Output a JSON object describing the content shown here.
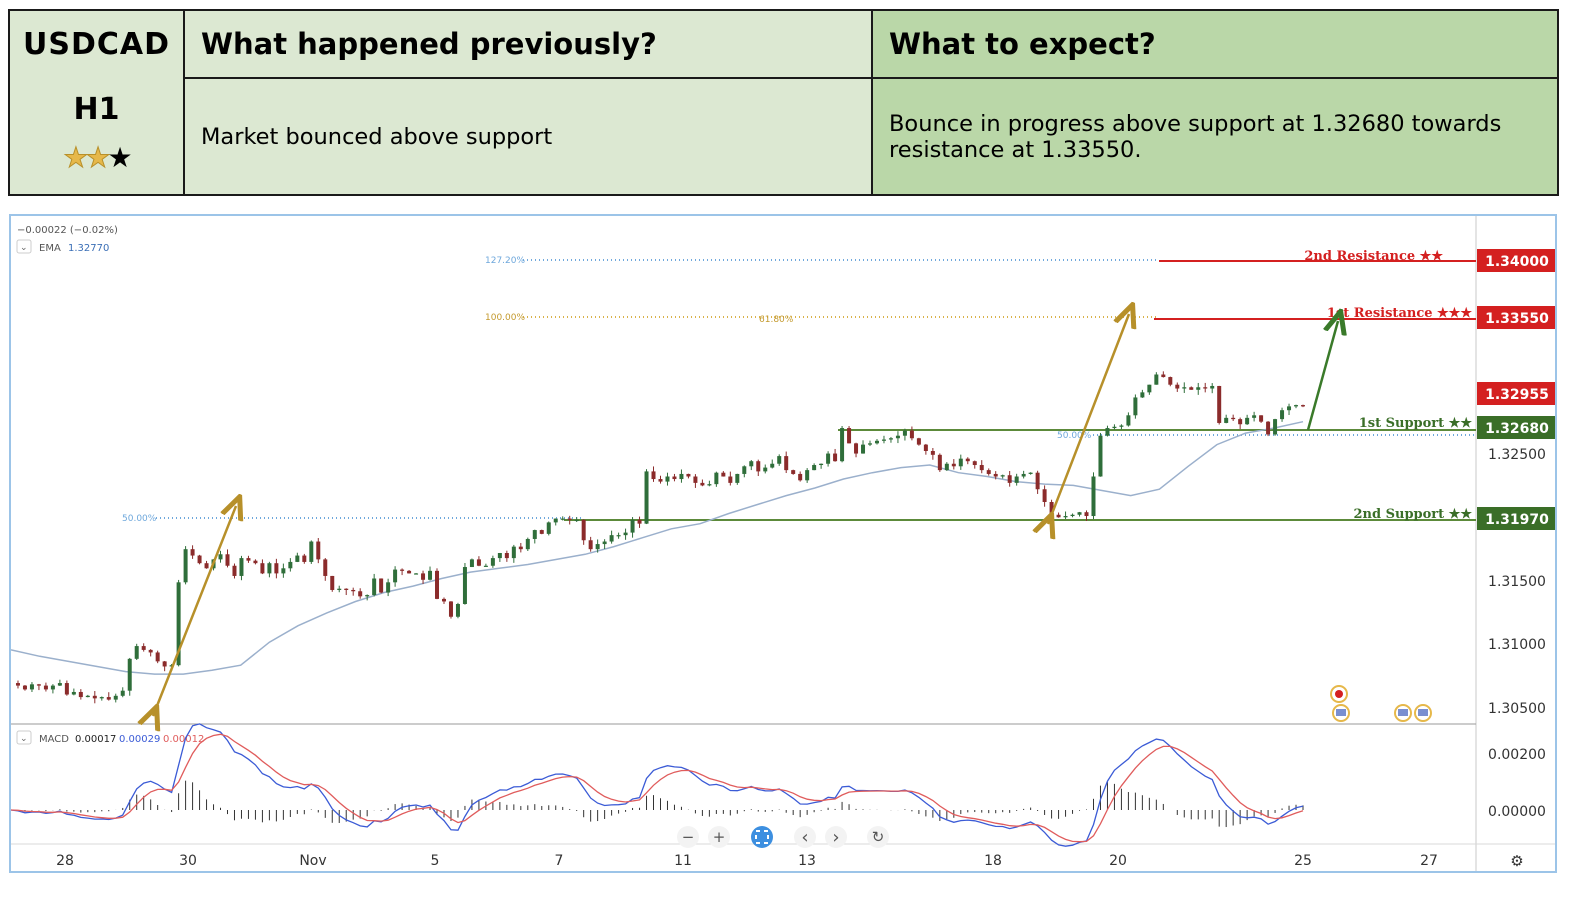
{
  "header": {
    "symbol": "USDCAD",
    "timeframe": "H1",
    "rating": {
      "filled": 2,
      "total": 3
    },
    "prev_title": "What happened previously?",
    "prev_text": "Market bounced above support",
    "expect_title": "What to expect?",
    "expect_line1": "Bounce in progress above support at 1.32680 towards",
    "expect_line2": "resistance at 1.33550."
  },
  "chart_top": {
    "change": "−0.00022 (−0.02%)",
    "ema_label": "EMA",
    "ema_value": "1.32770",
    "macd_label": "MACD",
    "macd_v1": "0.00017",
    "macd_v2": "0.00029",
    "macd_v3": "0.00012"
  },
  "chart_data": {
    "type": "line",
    "title": "",
    "ylim": [
      1.3025,
      1.3425
    ],
    "y_ticks": [
      "1.32500",
      "1.31500",
      "1.31000",
      "1.30500"
    ],
    "x_ticks": [
      "28",
      "30",
      "Nov",
      "5",
      "7",
      "11",
      "13",
      "18",
      "20",
      "25",
      "27"
    ],
    "price": [
      1.3068,
      1.3066,
      1.3063,
      1.3067,
      1.3066,
      1.3063,
      1.3066,
      1.3068,
      1.3059,
      1.3061,
      1.3057,
      1.3058,
      1.3056,
      1.3057,
      1.3055,
      1.3058,
      1.3062,
      1.3087,
      1.3097,
      1.3094,
      1.3092,
      1.3085,
      1.3081,
      1.3082,
      1.3147,
      1.3173,
      1.3168,
      1.3162,
      1.3158,
      1.3165,
      1.3169,
      1.316,
      1.3152,
      1.3166,
      1.3164,
      1.3162,
      1.3154,
      1.3162,
      1.3154,
      1.3158,
      1.3163,
      1.3168,
      1.3163,
      1.3179,
      1.3165,
      1.3152,
      1.3141,
      1.3142,
      1.3141,
      1.314,
      1.3136,
      1.3137,
      1.315,
      1.3139,
      1.3147,
      1.3157,
      1.3156,
      1.3154,
      1.3154,
      1.3149,
      1.3156,
      1.3134,
      1.3132,
      1.312,
      1.313,
      1.3159,
      1.3165,
      1.316,
      1.316,
      1.3166,
      1.317,
      1.3166,
      1.3175,
      1.3173,
      1.3181,
      1.3188,
      1.3185,
      1.3194,
      1.3197,
      1.3197,
      1.3196,
      1.3196,
      1.318,
      1.3173,
      1.3177,
      1.3179,
      1.3184,
      1.3184,
      1.3186,
      1.3196,
      1.3193,
      1.3234,
      1.3228,
      1.3226,
      1.323,
      1.3228,
      1.3232,
      1.323,
      1.3225,
      1.3223,
      1.3224,
      1.3233,
      1.323,
      1.3225,
      1.3232,
      1.3238,
      1.3242,
      1.3234,
      1.3237,
      1.324,
      1.3246,
      1.3235,
      1.3232,
      1.3227,
      1.3235,
      1.3239,
      1.324,
      1.3248,
      1.3242,
      1.3268,
      1.3256,
      1.3248,
      1.3255,
      1.3256,
      1.3258,
      1.3259,
      1.326,
      1.3262,
      1.3266,
      1.326,
      1.3255,
      1.325,
      1.3247,
      1.3235,
      1.324,
      1.3238,
      1.3244,
      1.3242,
      1.3239,
      1.3235,
      1.3232,
      1.323,
      1.3231,
      1.3225,
      1.323,
      1.3232,
      1.3233,
      1.322,
      1.321,
      1.32,
      1.3198,
      1.3199,
      1.32,
      1.3202,
      1.3199,
      1.323,
      1.3262,
      1.3268,
      1.3269,
      1.327,
      1.3278,
      1.3292,
      1.3296,
      1.3302,
      1.331,
      1.3308,
      1.3302,
      1.3299,
      1.33,
      1.3298,
      1.33,
      1.3299,
      1.3301,
      1.3272,
      1.3276,
      1.3275,
      1.3271,
      1.3276,
      1.3278,
      1.3273,
      1.3263,
      1.3275,
      1.3282,
      1.3285,
      1.3286,
      1.3285
    ],
    "ema": [
      1.3094,
      1.3089,
      1.3085,
      1.3081,
      1.3077,
      1.3075,
      1.3075,
      1.3078,
      1.3082,
      1.31,
      1.3113,
      1.3123,
      1.3132,
      1.3139,
      1.3144,
      1.315,
      1.3155,
      1.3158,
      1.3161,
      1.3165,
      1.3169,
      1.3175,
      1.3182,
      1.3189,
      1.3193,
      1.3201,
      1.3208,
      1.3215,
      1.3221,
      1.3228,
      1.3233,
      1.3237,
      1.3239,
      1.3233,
      1.323,
      1.3226,
      1.3224,
      1.3223,
      1.3219,
      1.3215,
      1.322,
      1.3238,
      1.3255,
      1.3264,
      1.3268,
      1.3273
    ],
    "levels": [
      {
        "name": "2nd Resistance ★★",
        "value": "1.34000",
        "color": "#d42020"
      },
      {
        "name": "1st Resistance ★★★",
        "value": "1.33550",
        "color": "#d42020"
      },
      {
        "name": "",
        "value": "1.32955",
        "color": "#d42020"
      },
      {
        "name": "1st Support ★★",
        "value": "1.32680",
        "color": "#3a6e28"
      },
      {
        "name": "2nd Support ★★",
        "value": "1.31970",
        "color": "#3a6e28"
      }
    ],
    "fib_labels": {
      "f1272": "127.20%",
      "f100": "100.00%",
      "f618": "61.80%",
      "f50a": "50.00%",
      "f50b": "50.00%"
    },
    "macd": {
      "ylim": [
        -0.0013,
        0.0031
      ],
      "ticks": [
        "0.00200",
        "0.00000"
      ]
    },
    "colors": {
      "up": "#2f6e3a",
      "down": "#8b2b2b",
      "ema": "#9bb0cc",
      "macd": "#3b5bd6",
      "signal": "#e05c5c",
      "gold": "#b7902a",
      "green": "#3a6e28",
      "red": "#d42020"
    }
  },
  "pager": {
    "minus": "−",
    "plus": "+",
    "prev": "‹",
    "next": "›",
    "reset": "↻",
    "settings": "⚙"
  }
}
